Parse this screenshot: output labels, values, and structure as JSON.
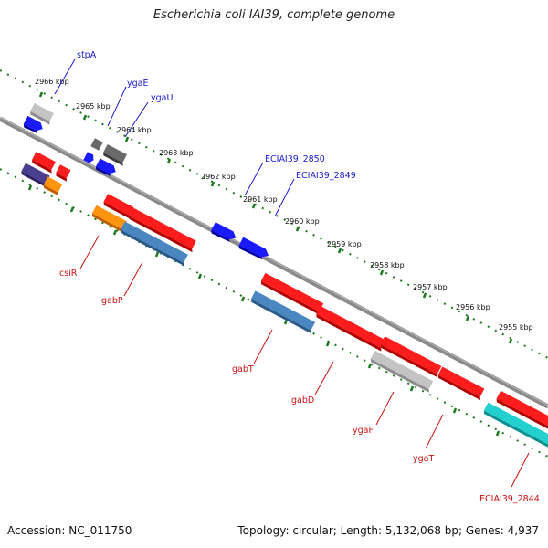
{
  "title": "Escherichia coli IAI39, complete genome",
  "accession": "Accession: NC_011750",
  "topology": "Topology: circular; Length: 5,132,068 bp; Genes: 4,937",
  "colors": {
    "backbone": "#8a8a8a",
    "ticks": "#1e7a1e",
    "forward_label": "#1a1acc",
    "reverse_label": "#cc1111",
    "red": "#ff1c1c",
    "blue": "#1a1aff",
    "steelblue": "#4a86c0",
    "orange": "#ff9410",
    "purple": "#4a3f8f",
    "lightgray": "#c4c4c4",
    "darkgray": "#6a6a6a",
    "cyan": "#22d0d0"
  },
  "scale_labels": [
    "2966 kbp",
    "2965 kbp",
    "2964 kbp",
    "2963 kbp",
    "2962 kbp",
    "2961 kbp",
    "2960 kbp",
    "2959 kbp",
    "2958 kbp",
    "2957 kbp",
    "2956 kbp",
    "2955 kbp"
  ],
  "forward_labels": [
    "stpA",
    "ygaE",
    "ygaU",
    "ECIAI39_2850",
    "ECIAI39_2849"
  ],
  "reverse_labels": [
    "csiR",
    "gabP",
    "gabT",
    "gabD",
    "ygaF",
    "ygaT",
    "ECIAI39_2844"
  ]
}
